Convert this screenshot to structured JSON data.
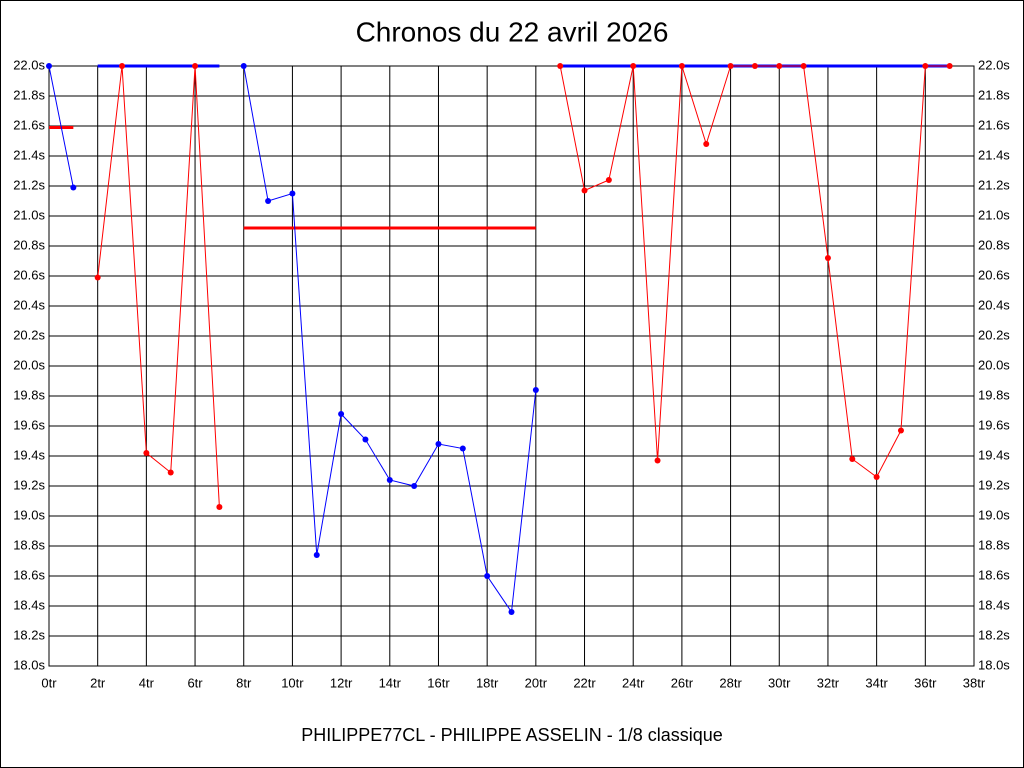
{
  "chart_data": {
    "type": "line",
    "title": "Chronos du 22 avril 2026",
    "xlabel": "PHILIPPE77CL - PHILIPPE ASSELIN - 1/8 classique",
    "grid": true,
    "xlim": [
      0,
      38
    ],
    "ylim": [
      18.0,
      22.0
    ],
    "x": [
      0,
      1,
      2,
      3,
      4,
      5,
      6,
      7,
      8,
      9,
      10,
      11,
      12,
      13,
      14,
      15,
      16,
      17,
      18,
      19,
      20,
      21,
      22,
      23,
      24,
      25,
      26,
      27,
      28,
      29,
      30,
      31,
      32,
      33,
      34,
      35,
      36,
      37
    ],
    "xticks": [
      {
        "value": 0,
        "label": "0tr"
      },
      {
        "value": 2,
        "label": "2tr"
      },
      {
        "value": 4,
        "label": "4tr"
      },
      {
        "value": 6,
        "label": "6tr"
      },
      {
        "value": 8,
        "label": "8tr"
      },
      {
        "value": 10,
        "label": "10tr"
      },
      {
        "value": 12,
        "label": "12tr"
      },
      {
        "value": 14,
        "label": "14tr"
      },
      {
        "value": 16,
        "label": "16tr"
      },
      {
        "value": 18,
        "label": "18tr"
      },
      {
        "value": 20,
        "label": "20tr"
      },
      {
        "value": 22,
        "label": "22tr"
      },
      {
        "value": 24,
        "label": "24tr"
      },
      {
        "value": 26,
        "label": "26tr"
      },
      {
        "value": 28,
        "label": "28tr"
      },
      {
        "value": 30,
        "label": "30tr"
      },
      {
        "value": 32,
        "label": "32tr"
      },
      {
        "value": 34,
        "label": "34tr"
      },
      {
        "value": 36,
        "label": "36tr"
      },
      {
        "value": 38,
        "label": "38tr"
      }
    ],
    "yticks": [
      {
        "value": 18.0,
        "label": "18.0s"
      },
      {
        "value": 18.2,
        "label": "18.2s"
      },
      {
        "value": 18.4,
        "label": "18.4s"
      },
      {
        "value": 18.6,
        "label": "18.6s"
      },
      {
        "value": 18.8,
        "label": "18.8s"
      },
      {
        "value": 19.0,
        "label": "19.0s"
      },
      {
        "value": 19.2,
        "label": "19.2s"
      },
      {
        "value": 19.4,
        "label": "19.4s"
      },
      {
        "value": 19.6,
        "label": "19.6s"
      },
      {
        "value": 19.8,
        "label": "19.8s"
      },
      {
        "value": 20.0,
        "label": "20.0s"
      },
      {
        "value": 20.2,
        "label": "20.2s"
      },
      {
        "value": 20.4,
        "label": "20.4s"
      },
      {
        "value": 20.6,
        "label": "20.6s"
      },
      {
        "value": 20.8,
        "label": "20.8s"
      },
      {
        "value": 21.0,
        "label": "21.0s"
      },
      {
        "value": 21.2,
        "label": "21.2s"
      },
      {
        "value": 21.4,
        "label": "21.4s"
      },
      {
        "value": 21.6,
        "label": "21.6s"
      },
      {
        "value": 21.8,
        "label": "21.8s"
      },
      {
        "value": 22.0,
        "label": "22.0s"
      }
    ],
    "series": [
      {
        "color": "#0000ff",
        "values": [
          22.0,
          21.19,
          null,
          null,
          null,
          null,
          null,
          null,
          22.0,
          21.1,
          21.15,
          18.74,
          19.68,
          19.51,
          19.24,
          19.2,
          19.48,
          19.45,
          18.6,
          18.36,
          19.84,
          null,
          null,
          null,
          null,
          null,
          null,
          null,
          null,
          null,
          null,
          null,
          null,
          null,
          null,
          null,
          null,
          null
        ]
      },
      {
        "color": "#ff0000",
        "values": [
          null,
          null,
          20.59,
          22.0,
          19.42,
          19.29,
          22.0,
          19.06,
          null,
          null,
          null,
          null,
          null,
          null,
          null,
          null,
          null,
          null,
          null,
          null,
          null,
          22.0,
          21.17,
          21.24,
          22.0,
          19.37,
          22.0,
          21.48,
          22.0,
          22.0,
          22.0,
          22.0,
          20.72,
          19.38,
          19.26,
          19.57,
          22.0,
          22.0
        ]
      }
    ],
    "reference_lines": [
      {
        "color": "#ff0000",
        "y": 21.59,
        "x": [
          0,
          1
        ]
      },
      {
        "color": "#0000ff",
        "y": 22.0,
        "x": [
          2,
          7
        ]
      },
      {
        "color": "#ff0000",
        "y": 20.92,
        "x": [
          8,
          20
        ]
      },
      {
        "color": "#0000ff",
        "y": 22.0,
        "x": [
          21,
          37
        ]
      }
    ]
  }
}
